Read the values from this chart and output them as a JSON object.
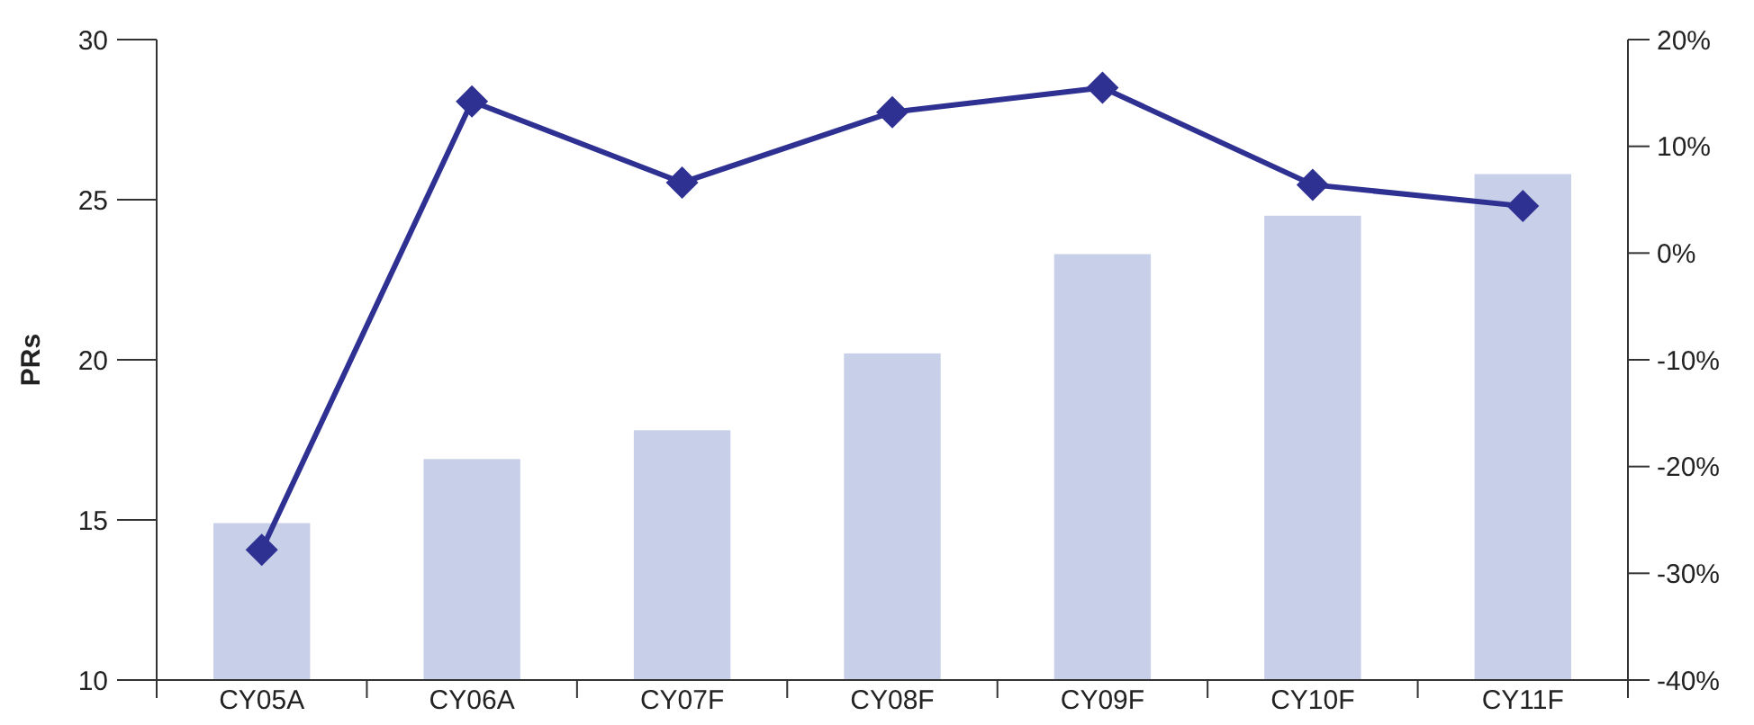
{
  "chart_data": {
    "type": "bar",
    "ylabel": "PRs",
    "categories": [
      "CY05A",
      "CY06A",
      "CY07F",
      "CY08F",
      "CY09F",
      "CY10F",
      "CY11F"
    ],
    "series": [
      {
        "color": "#c8cfe8",
        "values": [
          14.9,
          16.9,
          17.8,
          20.2,
          23.3,
          24.5,
          25.8
        ]
      },
      {
        "type": "line",
        "axis": "y2",
        "color": "#2e3192",
        "marker": "diamond",
        "values": [
          -27.8,
          14.2,
          6.6,
          13.2,
          15.5,
          6.4,
          4.4
        ]
      }
    ],
    "ylim": [
      10,
      30
    ],
    "yticks": [
      10,
      15,
      20,
      25,
      30
    ],
    "y2lim": [
      -40,
      20
    ],
    "y2ticks": [
      {
        "value": -40,
        "label": "-40%"
      },
      {
        "value": -30,
        "label": "-30%"
      },
      {
        "value": -20,
        "label": "-20%"
      },
      {
        "value": -10,
        "label": "-10%"
      },
      {
        "value": 0,
        "label": "0%"
      },
      {
        "value": 10,
        "label": "10%"
      },
      {
        "value": 20,
        "label": "20%"
      }
    ],
    "grid": false
  }
}
